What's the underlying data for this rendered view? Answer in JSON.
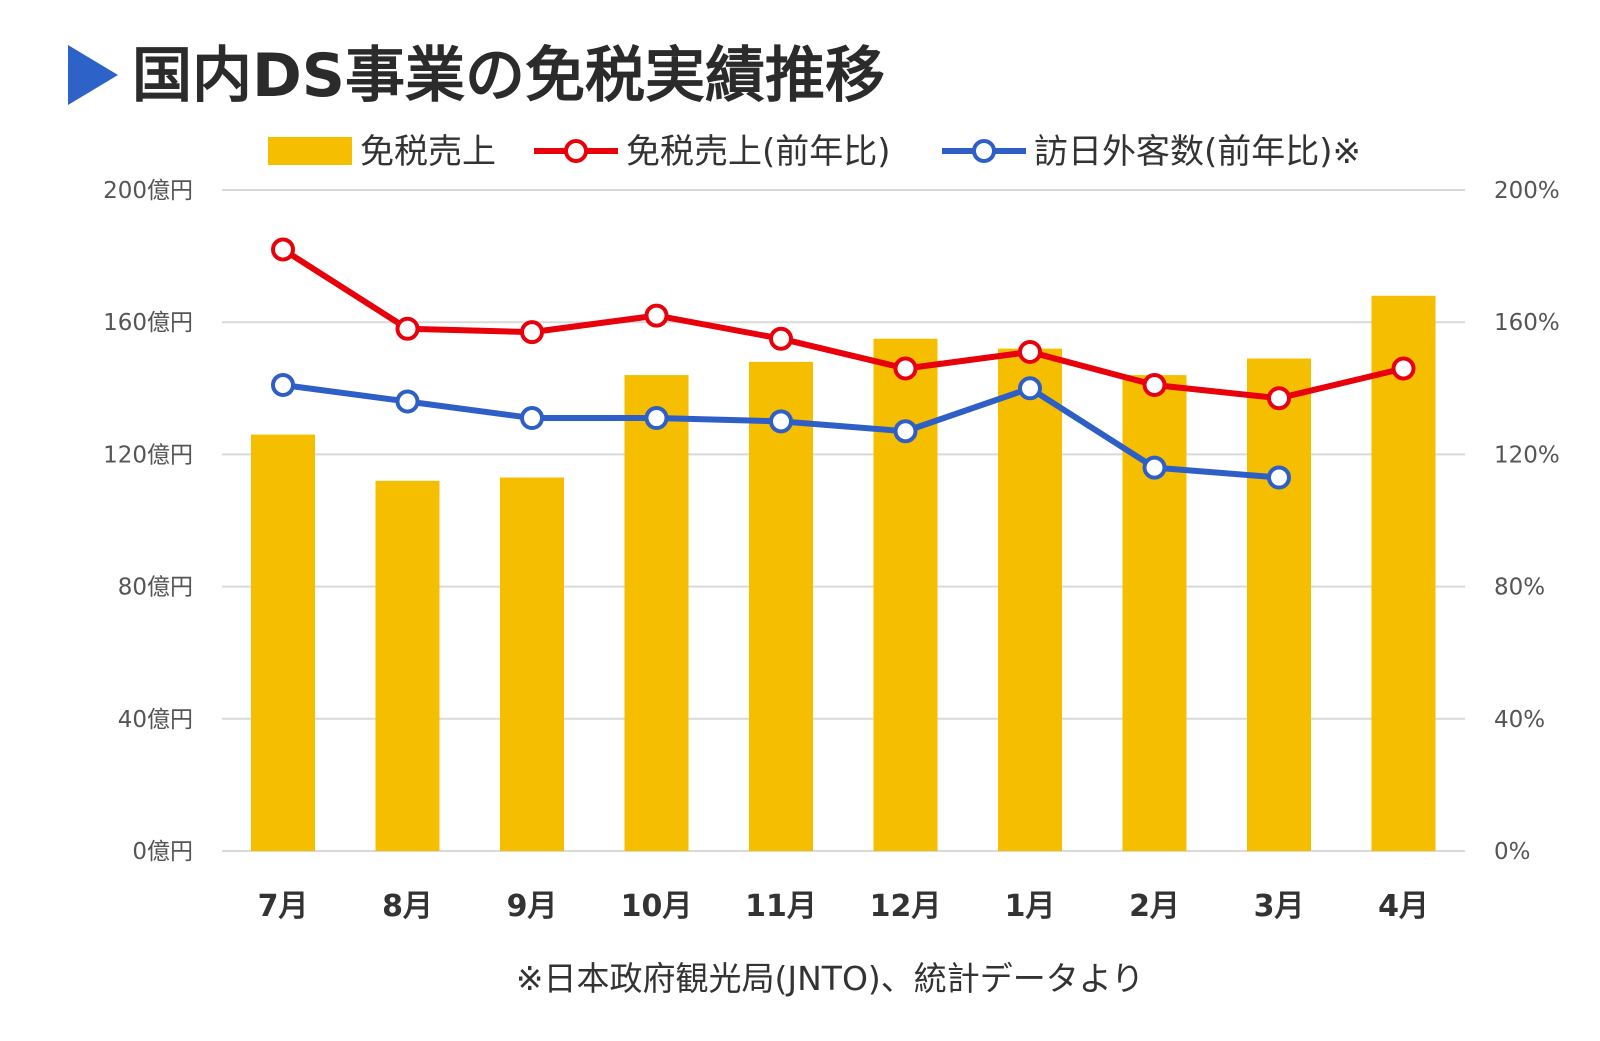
{
  "title": "国内DS事業の免税実績推移",
  "footnote": "※日本政府観光局(JNTO)、統計データより",
  "icons": {
    "title_marker": "triangle-right-icon"
  },
  "colors": {
    "bar": "#F5BF00",
    "red_line": "#E8000B",
    "blue_line": "#2E5FC6",
    "title_marker": "#2D63C8",
    "grid": "#D9D9D9"
  },
  "chart_data": {
    "type": "bar",
    "title": "国内DS事業の免税実績推移",
    "categories": [
      "7月",
      "8月",
      "9月",
      "10月",
      "11月",
      "12月",
      "1月",
      "2月",
      "3月",
      "4月"
    ],
    "series": [
      {
        "name": "免税売上",
        "type": "bar",
        "axis": "left",
        "values": [
          126,
          112,
          113,
          144,
          148,
          155,
          152,
          144,
          149,
          168
        ]
      },
      {
        "name": "免税売上(前年比)",
        "type": "line",
        "axis": "right",
        "values": [
          182,
          158,
          157,
          162,
          155,
          146,
          151,
          141,
          137,
          146
        ]
      },
      {
        "name": "訪日外客数(前年比)※",
        "type": "line",
        "axis": "right",
        "values": [
          141,
          136,
          131,
          131,
          130,
          127,
          140,
          116,
          113,
          null
        ]
      }
    ],
    "y_left": {
      "label": "",
      "ylim": [
        0,
        200
      ],
      "ticks": [
        "0億円",
        "40億円",
        "80億円",
        "120億円",
        "160億円",
        "200億円"
      ]
    },
    "y_right": {
      "label": "",
      "ylim": [
        0,
        200
      ],
      "ticks": [
        "0%",
        "40%",
        "80%",
        "120%",
        "160%",
        "200%"
      ]
    },
    "grid": true,
    "legend_position": "top"
  }
}
